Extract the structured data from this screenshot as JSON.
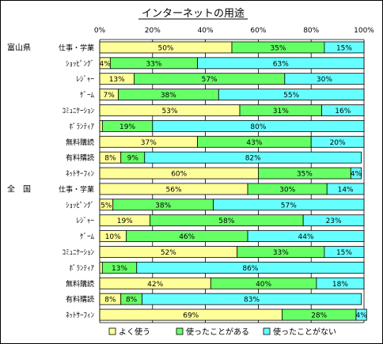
{
  "chart_data": {
    "type": "bar",
    "stacked": true,
    "orientation": "horizontal",
    "title": "インターネットの用途",
    "xlim": [
      0,
      100
    ],
    "x_ticks": [
      "0%",
      "20%",
      "40%",
      "60%",
      "80%",
      "100%"
    ],
    "groups": [
      {
        "label": "富山県",
        "start": 0
      },
      {
        "label": "全　国",
        "start": 9
      }
    ],
    "categories": [
      "仕事・学業",
      "ｼｮｯﾋﾟﾝｸﾞ",
      "ﾚｼﾞｬｰ",
      "ｹﾞｰﾑ",
      "ｺﾐｭﾆｹｰｼｮﾝ",
      "ﾎﾞﾗﾝﾃｨｱ",
      "無料購読",
      "有料購読",
      "ﾈｯﾄｻｰﾌｨﾝ",
      "仕事・学業",
      "ｼｮｯﾋﾟﾝｸﾞ",
      "ﾚｼﾞｬｰ",
      "ｹﾞｰﾑ",
      "ｺﾐｭﾆｹｰｼｮﾝ",
      "ﾎﾞﾗﾝﾃｨｱ",
      "無料購読",
      "有料購読",
      "ﾈｯﾄｻｰﾌｨﾝ"
    ],
    "series": [
      {
        "name": "よく使う",
        "color": "#FFFF99",
        "values": [
          50,
          4,
          13,
          7,
          53,
          1,
          37,
          8,
          60,
          56,
          5,
          19,
          10,
          52,
          1,
          42,
          8,
          69
        ],
        "labels": [
          "50%",
          "4%",
          "13%",
          "7%",
          "53%",
          "",
          "37%",
          "8%",
          "60%",
          "56%",
          "5%",
          "19%",
          "10%",
          "52%",
          "",
          "42%",
          "8%",
          "69%"
        ]
      },
      {
        "name": "使ったことがある",
        "color": "#66FF66",
        "values": [
          35,
          33,
          57,
          38,
          31,
          19,
          43,
          9,
          35,
          30,
          38,
          58,
          46,
          33,
          13,
          40,
          8,
          28
        ],
        "labels": [
          "35%",
          "33%",
          "57%",
          "38%",
          "31%",
          "19%",
          "43%",
          "9%",
          "35%",
          "30%",
          "38%",
          "58%",
          "46%",
          "33%",
          "13%",
          "40%",
          "8%",
          "28%"
        ]
      },
      {
        "name": "使ったことがない",
        "color": "#66FFFF",
        "values": [
          15,
          63,
          30,
          55,
          16,
          80,
          20,
          82,
          4,
          14,
          57,
          23,
          44,
          15,
          86,
          18,
          83,
          4
        ],
        "labels": [
          "15%",
          "63%",
          "30%",
          "55%",
          "16%",
          "80%",
          "20%",
          "82%",
          "4%",
          "14%",
          "57%",
          "23%",
          "44%",
          "15%",
          "86%",
          "18%",
          "83%",
          "4%"
        ]
      }
    ],
    "legend_position": "bottom",
    "grid": true
  }
}
